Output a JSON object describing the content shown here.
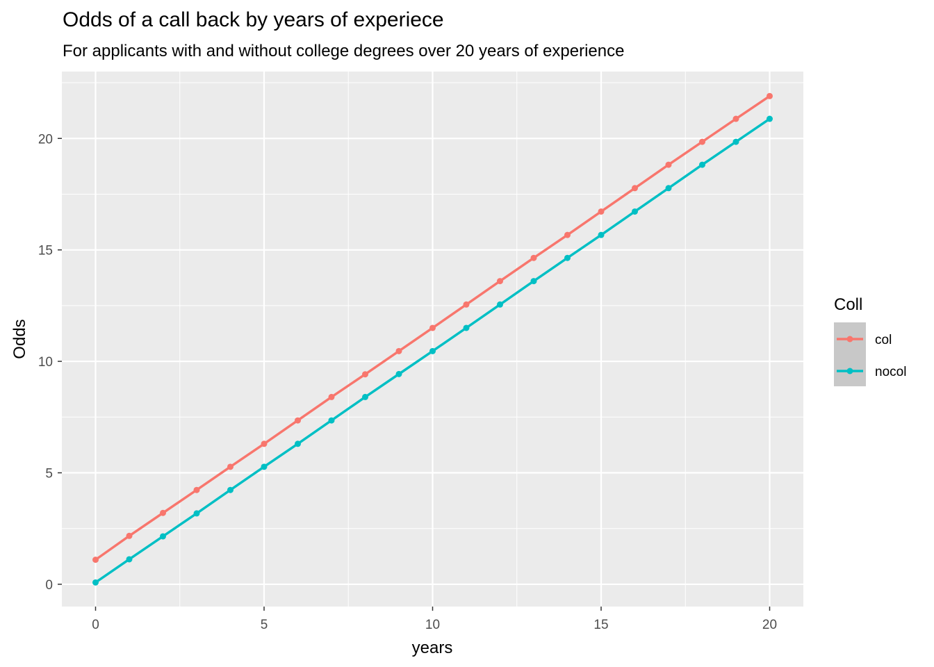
{
  "chart_data": {
    "type": "line",
    "title": "Odds of a call back by years of experiece",
    "subtitle": "For applicants with and without college degrees over 20 years of experience",
    "xlabel": "years",
    "ylabel": "Odds",
    "xlim": [
      -1,
      21
    ],
    "ylim": [
      -1,
      23
    ],
    "xticks": [
      0,
      5,
      10,
      15,
      20
    ],
    "yticks": [
      0,
      5,
      10,
      15,
      20
    ],
    "grid": true,
    "legend_title": "Coll",
    "legend_position": "right",
    "x": [
      0,
      1,
      2,
      3,
      4,
      5,
      6,
      7,
      8,
      9,
      10,
      11,
      12,
      13,
      14,
      15,
      16,
      17,
      18,
      19,
      20
    ],
    "series": [
      {
        "name": "col",
        "color": "#F8766D",
        "values": [
          1.1,
          2.17,
          3.2,
          4.23,
          5.27,
          6.3,
          7.35,
          8.4,
          9.42,
          10.46,
          11.5,
          12.55,
          13.6,
          14.64,
          15.67,
          16.72,
          17.77,
          18.82,
          19.85,
          20.88,
          21.9
        ]
      },
      {
        "name": "nocol",
        "color": "#00BFC4",
        "values": [
          0.08,
          1.12,
          2.15,
          3.18,
          4.23,
          5.27,
          6.3,
          7.35,
          8.4,
          9.43,
          10.46,
          11.5,
          12.55,
          13.6,
          14.64,
          15.67,
          16.72,
          17.77,
          18.82,
          19.85,
          20.88
        ]
      }
    ]
  }
}
